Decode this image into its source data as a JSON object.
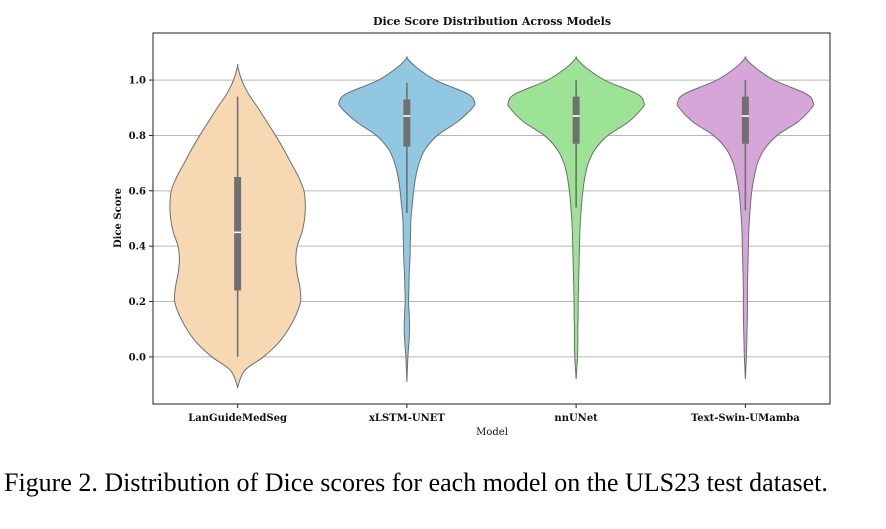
{
  "chart_data": {
    "type": "violin",
    "title": "Dice Score Distribution Across Models",
    "xlabel": "Model",
    "ylabel": "Dice Score",
    "ylim": [
      -0.17,
      1.17
    ],
    "yticks": [
      "0.0",
      "0.2",
      "0.4",
      "0.6",
      "0.8",
      "1.0"
    ],
    "grid": "horizontal",
    "categories": [
      "LanGuideMedSeg",
      "xLSTM-UNET",
      "nnUNet",
      "Text-Swin-UMamba"
    ],
    "colors": [
      "#f6d9b2",
      "#90c8e2",
      "#9ce396",
      "#d6a6d9"
    ],
    "series": [
      {
        "category": "LanGuideMedSeg",
        "min": 0.0,
        "q1": 0.24,
        "median": 0.45,
        "q3": 0.65,
        "max": 0.94,
        "kde_range": [
          -0.11,
          1.05
        ],
        "density": [
          [
            -0.11,
            0.0
          ],
          [
            -0.05,
            0.1
          ],
          [
            0.0,
            0.38
          ],
          [
            0.05,
            0.6
          ],
          [
            0.1,
            0.75
          ],
          [
            0.15,
            0.86
          ],
          [
            0.2,
            0.93
          ],
          [
            0.25,
            0.92
          ],
          [
            0.3,
            0.88
          ],
          [
            0.35,
            0.86
          ],
          [
            0.4,
            0.88
          ],
          [
            0.45,
            0.95
          ],
          [
            0.5,
            0.99
          ],
          [
            0.55,
            1.0
          ],
          [
            0.6,
            0.98
          ],
          [
            0.65,
            0.9
          ],
          [
            0.7,
            0.79
          ],
          [
            0.75,
            0.68
          ],
          [
            0.8,
            0.56
          ],
          [
            0.85,
            0.43
          ],
          [
            0.9,
            0.3
          ],
          [
            0.95,
            0.16
          ],
          [
            1.0,
            0.06
          ],
          [
            1.05,
            0.0
          ]
        ]
      },
      {
        "category": "xLSTM-UNET",
        "min": 0.52,
        "q1": 0.76,
        "median": 0.87,
        "q3": 0.93,
        "max": 0.99,
        "kde_range": [
          -0.09,
          1.08
        ],
        "density": [
          [
            -0.09,
            0.0
          ],
          [
            0.0,
            0.015
          ],
          [
            0.05,
            0.03
          ],
          [
            0.1,
            0.04
          ],
          [
            0.15,
            0.035
          ],
          [
            0.2,
            0.025
          ],
          [
            0.25,
            0.03
          ],
          [
            0.3,
            0.035
          ],
          [
            0.35,
            0.045
          ],
          [
            0.4,
            0.05
          ],
          [
            0.45,
            0.055
          ],
          [
            0.5,
            0.06
          ],
          [
            0.55,
            0.08
          ],
          [
            0.6,
            0.1
          ],
          [
            0.65,
            0.13
          ],
          [
            0.7,
            0.18
          ],
          [
            0.75,
            0.27
          ],
          [
            0.8,
            0.45
          ],
          [
            0.85,
            0.75
          ],
          [
            0.9,
            0.97
          ],
          [
            0.92,
            1.0
          ],
          [
            0.95,
            0.9
          ],
          [
            1.0,
            0.42
          ],
          [
            1.05,
            0.12
          ],
          [
            1.08,
            0.0
          ]
        ]
      },
      {
        "category": "nnUNet",
        "min": 0.54,
        "q1": 0.77,
        "median": 0.87,
        "q3": 0.94,
        "max": 1.0,
        "kde_range": [
          -0.08,
          1.08
        ],
        "density": [
          [
            -0.08,
            0.0
          ],
          [
            0.0,
            0.02
          ],
          [
            0.05,
            0.025
          ],
          [
            0.1,
            0.025
          ],
          [
            0.15,
            0.03
          ],
          [
            0.2,
            0.03
          ],
          [
            0.25,
            0.035
          ],
          [
            0.3,
            0.04
          ],
          [
            0.35,
            0.045
          ],
          [
            0.4,
            0.05
          ],
          [
            0.45,
            0.055
          ],
          [
            0.5,
            0.065
          ],
          [
            0.55,
            0.08
          ],
          [
            0.6,
            0.1
          ],
          [
            0.65,
            0.13
          ],
          [
            0.7,
            0.18
          ],
          [
            0.75,
            0.28
          ],
          [
            0.8,
            0.47
          ],
          [
            0.85,
            0.78
          ],
          [
            0.9,
            0.98
          ],
          [
            0.92,
            1.0
          ],
          [
            0.95,
            0.9
          ],
          [
            1.0,
            0.42
          ],
          [
            1.05,
            0.12
          ],
          [
            1.08,
            0.0
          ]
        ]
      },
      {
        "category": "Text-Swin-UMamba",
        "min": 0.53,
        "q1": 0.77,
        "median": 0.87,
        "q3": 0.94,
        "max": 1.0,
        "kde_range": [
          -0.08,
          1.08
        ],
        "density": [
          [
            -0.08,
            0.0
          ],
          [
            0.0,
            0.015
          ],
          [
            0.05,
            0.02
          ],
          [
            0.1,
            0.025
          ],
          [
            0.15,
            0.03
          ],
          [
            0.2,
            0.03
          ],
          [
            0.25,
            0.03
          ],
          [
            0.3,
            0.035
          ],
          [
            0.35,
            0.04
          ],
          [
            0.4,
            0.045
          ],
          [
            0.45,
            0.05
          ],
          [
            0.5,
            0.06
          ],
          [
            0.55,
            0.075
          ],
          [
            0.6,
            0.095
          ],
          [
            0.65,
            0.13
          ],
          [
            0.7,
            0.18
          ],
          [
            0.75,
            0.28
          ],
          [
            0.8,
            0.47
          ],
          [
            0.85,
            0.78
          ],
          [
            0.9,
            0.98
          ],
          [
            0.92,
            1.0
          ],
          [
            0.95,
            0.9
          ],
          [
            1.0,
            0.42
          ],
          [
            1.05,
            0.12
          ],
          [
            1.08,
            0.0
          ]
        ]
      }
    ]
  },
  "caption": "Figure 2. Distribution of Dice scores for each model on the ULS23 test dataset."
}
